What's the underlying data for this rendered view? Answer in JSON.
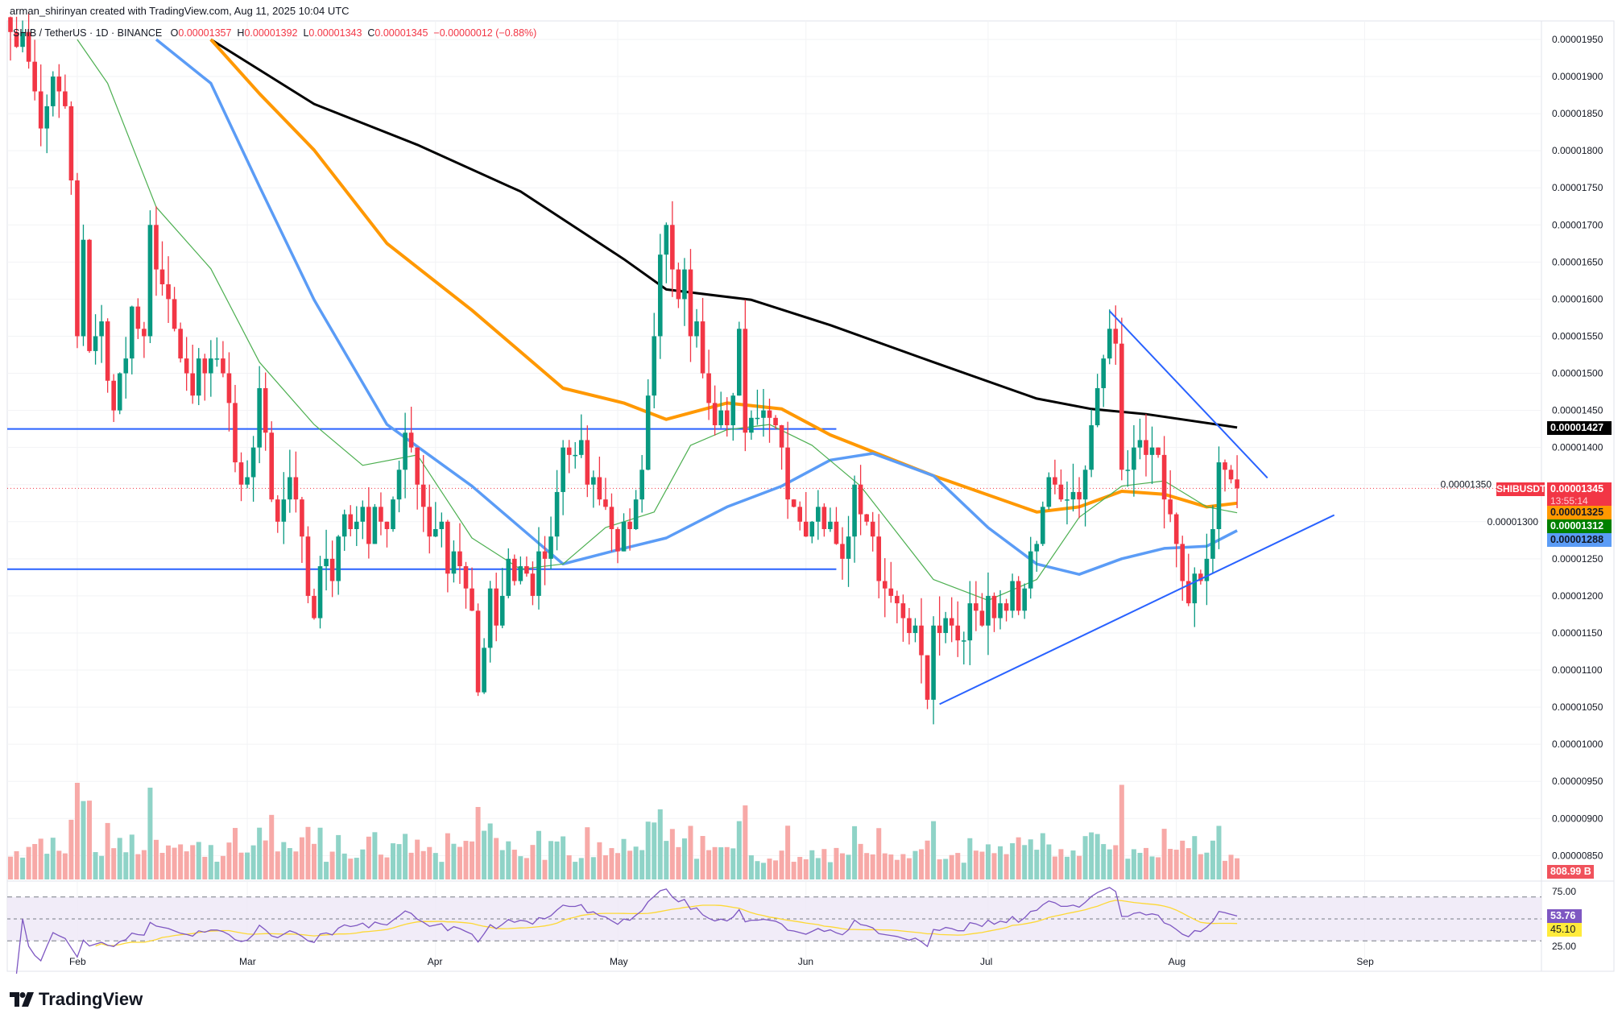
{
  "header": {
    "attribution": "arman_shirinyan created with TradingView.com, Aug 11, 2025 10:04 UTC"
  },
  "legend": {
    "symbol": "SHIB / TetherUS · 1D · BINANCE",
    "o_label": "O",
    "o": "0.00001357",
    "h_label": "H",
    "h": "0.00001392",
    "l_label": "L",
    "l": "0.00001343",
    "c_label": "C",
    "c": "0.00001345",
    "change": "−0.00000012 (−0.88%)"
  },
  "tags": {
    "ticker": "SHIBUSDT",
    "last_price": "0.00001345",
    "countdown": "13:55:14",
    "ma_black": "0.00001427",
    "ma_orange": "0.00001325",
    "ma_green": "0.00001312",
    "ma_blue": "0.00001288",
    "volume": "808.99 B",
    "rsi": "53.76",
    "rsi_ma": "45.10"
  },
  "brand": {
    "name": "TradingView"
  },
  "colors": {
    "up": "#089981",
    "down": "#f23645",
    "ma_black": "#000000",
    "ma_orange": "#ff9800",
    "ma_blue": "#5b9cf6",
    "ma_green": "#4caf50",
    "lines": "#2962ff",
    "rsi": "#7e57c2",
    "rsi_ma": "#fdd835"
  },
  "chart_data": {
    "type": "candlestick",
    "title": "SHIB / TetherUS · 1D · BINANCE",
    "price_unit": "1e-8 USDT",
    "start_date": "2025-01-21",
    "closes": [
      1960,
      1940,
      1960,
      1920,
      1880,
      1830,
      1860,
      1900,
      1880,
      1860,
      1760,
      1550,
      1680,
      1530,
      1550,
      1570,
      1490,
      1450,
      1500,
      1520,
      1590,
      1560,
      1550,
      1700,
      1640,
      1620,
      1600,
      1560,
      1520,
      1500,
      1470,
      1520,
      1500,
      1520,
      1520,
      1500,
      1460,
      1380,
      1350,
      1360,
      1400,
      1480,
      1420,
      1330,
      1300,
      1330,
      1360,
      1330,
      1280,
      1200,
      1170,
      1240,
      1250,
      1220,
      1280,
      1310,
      1290,
      1300,
      1320,
      1270,
      1320,
      1300,
      1290,
      1330,
      1370,
      1420,
      1400,
      1350,
      1320,
      1280,
      1290,
      1300,
      1230,
      1260,
      1240,
      1210,
      1180,
      1070,
      1130,
      1210,
      1160,
      1200,
      1250,
      1220,
      1240,
      1230,
      1200,
      1260,
      1250,
      1280,
      1340,
      1400,
      1390,
      1390,
      1410,
      1350,
      1360,
      1330,
      1320,
      1290,
      1260,
      1300,
      1290,
      1330,
      1370,
      1470,
      1550,
      1660,
      1700,
      1640,
      1600,
      1640,
      1550,
      1570,
      1500,
      1460,
      1430,
      1450,
      1430,
      1470,
      1560,
      1420,
      1440,
      1440,
      1450,
      1440,
      1430,
      1400,
      1330,
      1320,
      1300,
      1280,
      1300,
      1320,
      1290,
      1300,
      1270,
      1250,
      1280,
      1350,
      1310,
      1300,
      1280,
      1220,
      1210,
      1200,
      1190,
      1170,
      1150,
      1160,
      1120,
      1060,
      1160,
      1150,
      1170,
      1160,
      1140,
      1140,
      1190,
      1180,
      1160,
      1200,
      1170,
      1190,
      1180,
      1220,
      1180,
      1210,
      1260,
      1270,
      1320,
      1360,
      1350,
      1330,
      1330,
      1340,
      1330,
      1370,
      1430,
      1480,
      1520,
      1560,
      1540,
      1370,
      1370,
      1400,
      1410,
      1390,
      1400,
      1390,
      1330,
      1310,
      1270,
      1220,
      1190,
      1230,
      1220,
      1250,
      1290,
      1380,
      1370,
      1357,
      1345
    ],
    "moving_averages": [
      {
        "name": "MA black",
        "color": "ma_black",
        "points": [
          [
            33,
            1950
          ],
          [
            50,
            1863
          ],
          [
            67,
            1808
          ],
          [
            84,
            1745
          ],
          [
            101,
            1654
          ],
          [
            108,
            1613
          ],
          [
            122,
            1599
          ],
          [
            135,
            1565
          ],
          [
            152,
            1515
          ],
          [
            169,
            1466
          ],
          [
            178,
            1452
          ],
          [
            187,
            1445
          ],
          [
            202,
            1427
          ]
        ]
      },
      {
        "name": "MA orange",
        "color": "ma_orange",
        "points": [
          [
            33,
            1950
          ],
          [
            41,
            1877
          ],
          [
            50,
            1801
          ],
          [
            62,
            1675
          ],
          [
            76,
            1585
          ],
          [
            91,
            1480
          ],
          [
            101,
            1460
          ],
          [
            108,
            1438
          ],
          [
            118,
            1460
          ],
          [
            127,
            1452
          ],
          [
            135,
            1417
          ],
          [
            152,
            1362
          ],
          [
            169,
            1313
          ],
          [
            176,
            1320
          ],
          [
            183,
            1341
          ],
          [
            190,
            1337
          ],
          [
            197,
            1320
          ],
          [
            202,
            1325
          ]
        ]
      },
      {
        "name": "MA blue",
        "color": "ma_blue",
        "points": [
          [
            24,
            1950
          ],
          [
            33,
            1891
          ],
          [
            41,
            1752
          ],
          [
            50,
            1599
          ],
          [
            62,
            1431
          ],
          [
            76,
            1348
          ],
          [
            91,
            1243
          ],
          [
            101,
            1264
          ],
          [
            108,
            1278
          ],
          [
            118,
            1320
          ],
          [
            127,
            1348
          ],
          [
            135,
            1383
          ],
          [
            142,
            1392
          ],
          [
            152,
            1362
          ],
          [
            161,
            1292
          ],
          [
            169,
            1243
          ],
          [
            176,
            1229
          ],
          [
            183,
            1250
          ],
          [
            190,
            1264
          ],
          [
            197,
            1267
          ],
          [
            202,
            1288
          ]
        ]
      },
      {
        "name": "MA green",
        "color": "ma_green",
        "points": [
          [
            11,
            1950
          ],
          [
            16,
            1891
          ],
          [
            24,
            1724
          ],
          [
            33,
            1641
          ],
          [
            41,
            1515
          ],
          [
            50,
            1431
          ],
          [
            58,
            1376
          ],
          [
            67,
            1390
          ],
          [
            76,
            1278
          ],
          [
            84,
            1236
          ],
          [
            91,
            1243
          ],
          [
            98,
            1292
          ],
          [
            106,
            1313
          ],
          [
            112,
            1403
          ],
          [
            118,
            1424
          ],
          [
            125,
            1431
          ],
          [
            132,
            1403
          ],
          [
            140,
            1348
          ],
          [
            152,
            1222
          ],
          [
            161,
            1194
          ],
          [
            169,
            1222
          ],
          [
            176,
            1306
          ],
          [
            183,
            1348
          ],
          [
            190,
            1355
          ],
          [
            197,
            1320
          ],
          [
            202,
            1312
          ]
        ]
      }
    ],
    "horizontal_levels": [
      {
        "price": 1425,
        "from": 0,
        "to": 136
      },
      {
        "price": 1236,
        "from": 0,
        "to": 136
      }
    ],
    "trendlines": [
      {
        "from": [
          181,
          1584
        ],
        "to": [
          207,
          1359
        ]
      },
      {
        "from": [
          153,
          1054
        ],
        "to": [
          218,
          1309
        ]
      }
    ],
    "price_axis": [
      "0.00001950",
      "0.00001900",
      "0.00001850",
      "0.00001800",
      "0.00001750",
      "0.00001700",
      "0.00001650",
      "0.00001600",
      "0.00001550",
      "0.00001500",
      "0.00001450",
      "0.00001400",
      "0.00001350",
      "0.00001300",
      "0.00001250",
      "0.00001200",
      "0.00001150",
      "0.00001100",
      "0.00001050",
      "0.00001000",
      "0.00000950",
      "0.00000900",
      "0.00000850"
    ],
    "price_axis_values": [
      1950,
      1900,
      1850,
      1800,
      1750,
      1700,
      1650,
      1600,
      1550,
      1500,
      1450,
      1400,
      1350,
      1300,
      1250,
      1200,
      1150,
      1100,
      1050,
      1000,
      950,
      900,
      850
    ],
    "rsi_axis": [
      "75.00",
      "25.00"
    ],
    "rsi_levels": [
      70,
      50,
      30
    ],
    "time_axis": [
      {
        "label": "Feb",
        "day": 11
      },
      {
        "label": "Mar",
        "day": 39
      },
      {
        "label": "Apr",
        "day": 70
      },
      {
        "label": "May",
        "day": 100
      },
      {
        "label": "Jun",
        "day": 131
      },
      {
        "label": "Jul",
        "day": 161
      },
      {
        "label": "Aug",
        "day": 192
      },
      {
        "label": "Sep",
        "day": 223
      }
    ]
  }
}
